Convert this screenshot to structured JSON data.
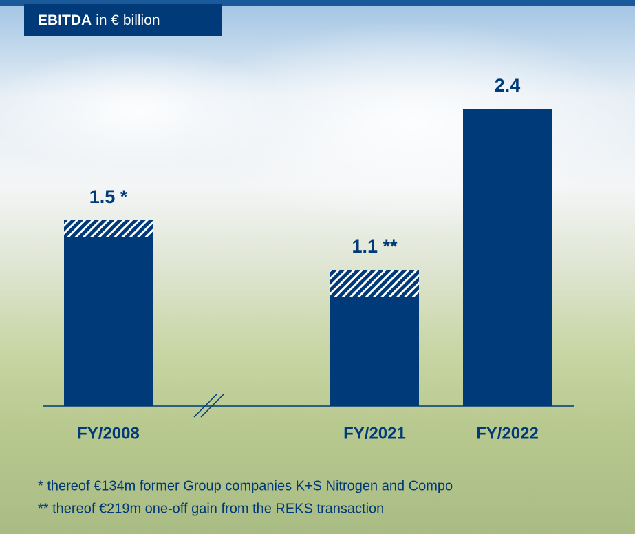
{
  "chart_data": {
    "type": "bar",
    "title": "EBITDA",
    "unit": "in € billion",
    "categories": [
      "FY/2008",
      "FY/2021",
      "FY/2022"
    ],
    "values": [
      1.5,
      1.1,
      2.4
    ],
    "value_labels": [
      "1.5 *",
      "1.1 **",
      "2.4"
    ],
    "hatched_values": [
      0.134,
      0.219,
      null
    ],
    "color": "#003a78",
    "ylim": [
      0,
      2.6
    ],
    "notes": [
      "* thereof €134m former Group companies K+S Nitrogen and Compo",
      "** thereof €219m one-off gain from the REKS transaction"
    ]
  }
}
